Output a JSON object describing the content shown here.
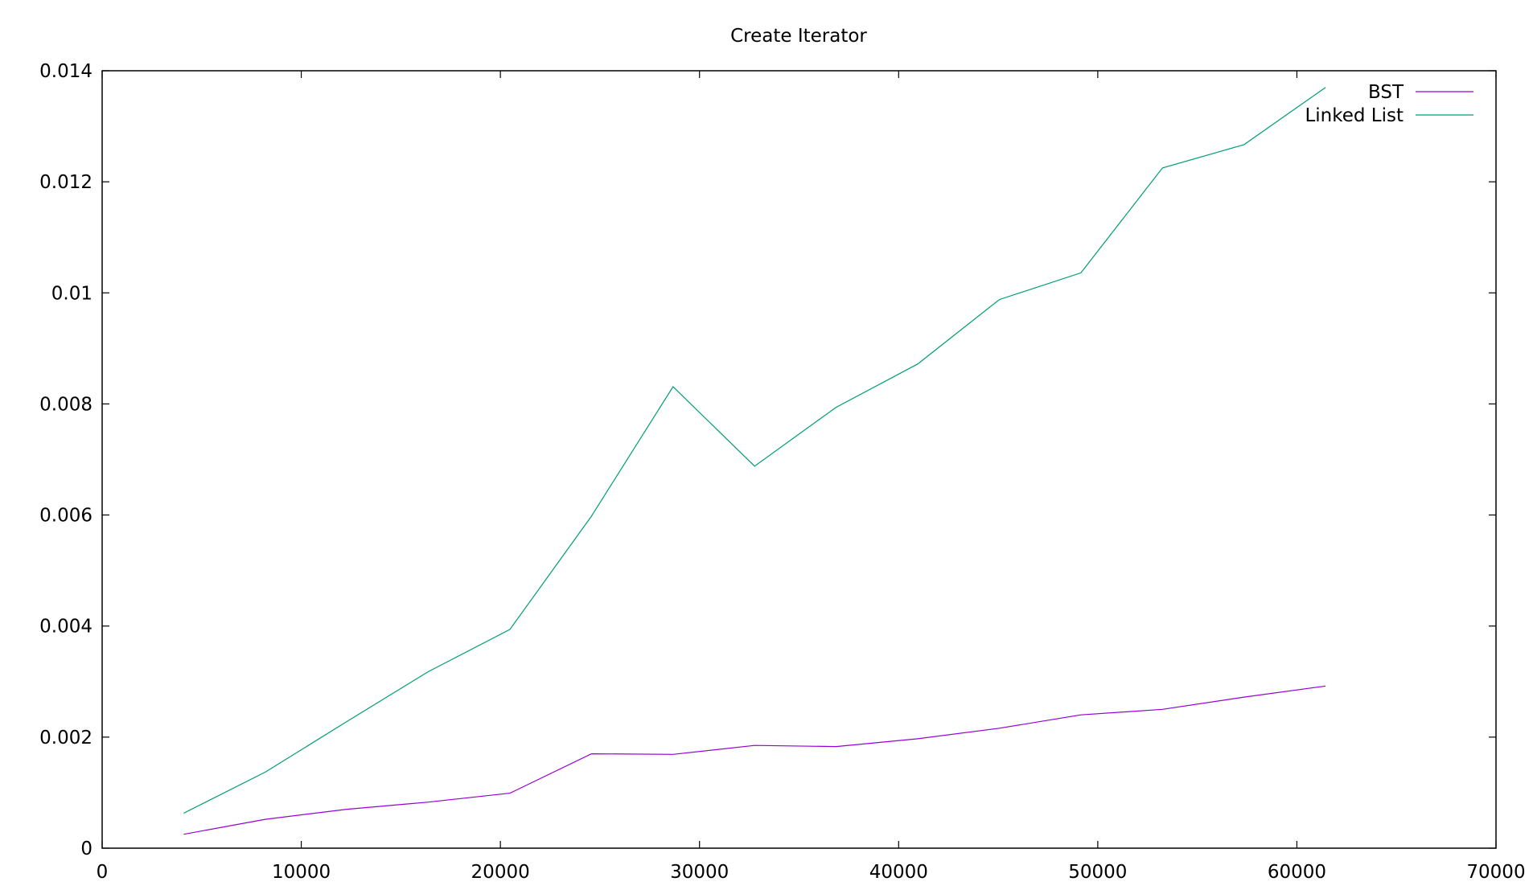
{
  "chart_data": {
    "type": "line",
    "title": "Create Iterator",
    "xlabel": "",
    "ylabel": "",
    "xlim": [
      0,
      70000
    ],
    "ylim": [
      0,
      0.014
    ],
    "xticks": [
      0,
      10000,
      20000,
      30000,
      40000,
      50000,
      60000,
      70000
    ],
    "xtick_labels": [
      "0",
      "10000",
      "20000",
      "30000",
      "40000",
      "50000",
      "60000",
      "70000"
    ],
    "yticks": [
      0,
      0.002,
      0.004,
      0.006,
      0.008,
      0.01,
      0.012,
      0.014
    ],
    "ytick_labels": [
      "0",
      "0.002",
      "0.004",
      "0.006",
      "0.008",
      "0.01",
      "0.012",
      "0.014"
    ],
    "grid": false,
    "legend_position": "top-right",
    "x": [
      4096,
      8192,
      12288,
      16384,
      20480,
      24576,
      28672,
      32768,
      36864,
      40960,
      45056,
      49152,
      53248,
      57344,
      61440
    ],
    "series": [
      {
        "name": "BST",
        "color": "#9400d3",
        "values": [
          0.00025,
          0.00052,
          0.0007,
          0.00083,
          0.00099,
          0.0017,
          0.00169,
          0.00185,
          0.00183,
          0.00197,
          0.00216,
          0.0024,
          0.0025,
          0.00272,
          0.00292
        ]
      },
      {
        "name": "Linked List",
        "color": "#009e73",
        "values": [
          0.00063,
          0.00137,
          0.00228,
          0.00318,
          0.00394,
          0.00598,
          0.00831,
          0.00688,
          0.00794,
          0.00872,
          0.00988,
          0.01036,
          0.01225,
          0.01267,
          0.0137
        ]
      }
    ]
  }
}
